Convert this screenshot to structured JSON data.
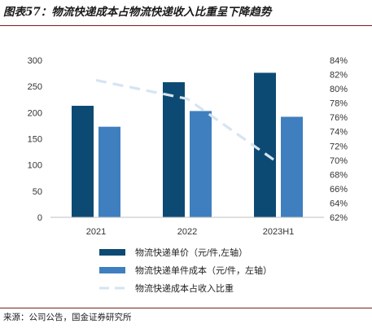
{
  "title": "图表57：物流快递成本占物流快递收入比重呈下降趋势",
  "source": "来源：公司公告，国金证券研究所",
  "colors": {
    "unit_price": "#0d4a73",
    "unit_cost": "#3f7fc0",
    "ratio_line": "#d6e4f2",
    "rule": "#7a1c1c"
  },
  "chart_data": {
    "type": "bar",
    "categories": [
      "2021",
      "2022",
      "2023H1"
    ],
    "series": [
      {
        "name": "物流快递单价（元/件,左轴）",
        "type": "bar",
        "axis": "left",
        "values": [
          213,
          258,
          276
        ]
      },
      {
        "name": "物流快递单件成本（元/件，左轴）",
        "type": "bar",
        "axis": "left",
        "values": [
          173,
          203,
          192
        ]
      },
      {
        "name": "物流快递成本占收入比重",
        "type": "line",
        "axis": "right",
        "style": "dashed",
        "values": [
          81.2,
          78.6,
          69.6
        ]
      }
    ],
    "left_axis": {
      "min": 0,
      "max": 300,
      "ticks": [
        "0",
        "50",
        "100",
        "150",
        "200",
        "250",
        "300"
      ]
    },
    "right_axis": {
      "min": 62,
      "max": 84,
      "ticks": [
        "62%",
        "64%",
        "66%",
        "68%",
        "70%",
        "72%",
        "74%",
        "76%",
        "78%",
        "80%",
        "82%",
        "84%"
      ]
    },
    "legend_position": "bottom",
    "grid": false
  }
}
